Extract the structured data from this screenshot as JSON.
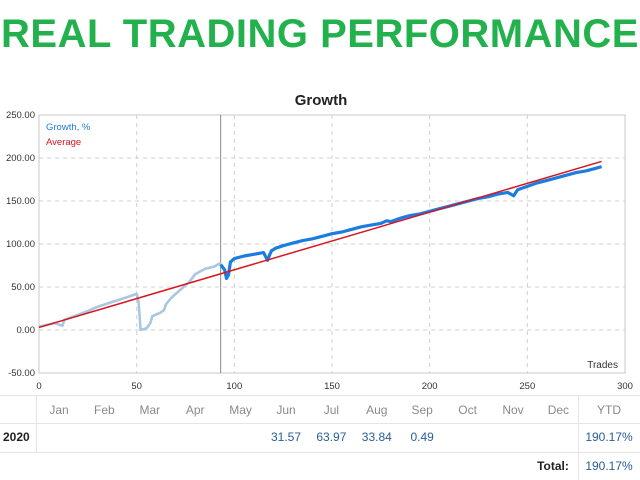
{
  "banner": {
    "title": "REAL TRADING PERFORMANCE",
    "color": "#22b14c"
  },
  "chart_data": {
    "type": "line",
    "title": "Growth",
    "xlabel": "Trades",
    "ylabel": "",
    "xlim": [
      0,
      300
    ],
    "ylim": [
      -50,
      250
    ],
    "x_ticks": [
      "0",
      "50",
      "100",
      "150",
      "200",
      "250",
      "300"
    ],
    "y_ticks": [
      "-50.00",
      "0.00",
      "50.00",
      "100.00",
      "150.00",
      "200.00",
      "250.00"
    ],
    "grid": true,
    "legend_position": "top-left",
    "legend": [
      "Growth, %",
      "Average"
    ],
    "marker_trade": 93,
    "series": [
      {
        "name": "Growth, %",
        "color_before": "#a9c6e2",
        "color_after": "#1c7ce0",
        "x": [
          0,
          8,
          12,
          13,
          18,
          25,
          30,
          38,
          45,
          50,
          51,
          52,
          55,
          57,
          58,
          60,
          62,
          64,
          65,
          68,
          70,
          73,
          77,
          80,
          85,
          90,
          92,
          93,
          95,
          96,
          97,
          98,
          100,
          105,
          110,
          115,
          117,
          118,
          119,
          121,
          125,
          130,
          135,
          140,
          145,
          150,
          155,
          160,
          165,
          170,
          175,
          178,
          180,
          185,
          190,
          195,
          200,
          205,
          210,
          215,
          220,
          225,
          230,
          235,
          240,
          243,
          245,
          250,
          255,
          260,
          265,
          270,
          275,
          280,
          285,
          288
        ],
        "y": [
          4,
          8,
          5,
          12,
          16,
          22,
          27,
          33,
          38,
          42,
          32,
          0,
          2,
          8,
          16,
          18,
          20,
          23,
          30,
          38,
          42,
          48,
          56,
          65,
          71,
          74,
          77,
          76,
          70,
          60,
          64,
          79,
          83,
          86,
          88,
          90,
          81,
          87,
          92,
          95,
          98,
          101,
          104,
          106,
          109,
          112,
          114,
          117,
          120,
          122,
          124,
          127,
          126,
          130,
          133,
          135,
          138,
          141,
          144,
          147,
          150,
          153,
          155,
          158,
          160,
          156,
          163,
          167,
          171,
          174,
          177,
          180,
          183,
          185,
          188,
          190
        ]
      },
      {
        "name": "Average",
        "color": "#d9151e",
        "x": [
          0,
          288
        ],
        "y": [
          3,
          196
        ]
      }
    ]
  },
  "calendar": {
    "months": [
      "Jan",
      "Feb",
      "Mar",
      "Apr",
      "May",
      "Jun",
      "Jul",
      "Aug",
      "Sep",
      "Oct",
      "Nov",
      "Dec"
    ],
    "ytd_label": "YTD",
    "year": "2020",
    "values": [
      "",
      "",
      "",
      "",
      "",
      "31.57",
      "63.97",
      "33.84",
      "0.49",
      "",
      "",
      ""
    ],
    "ytd_value": "190.17%",
    "total_label": "Total:",
    "total_value": "190.17%"
  }
}
